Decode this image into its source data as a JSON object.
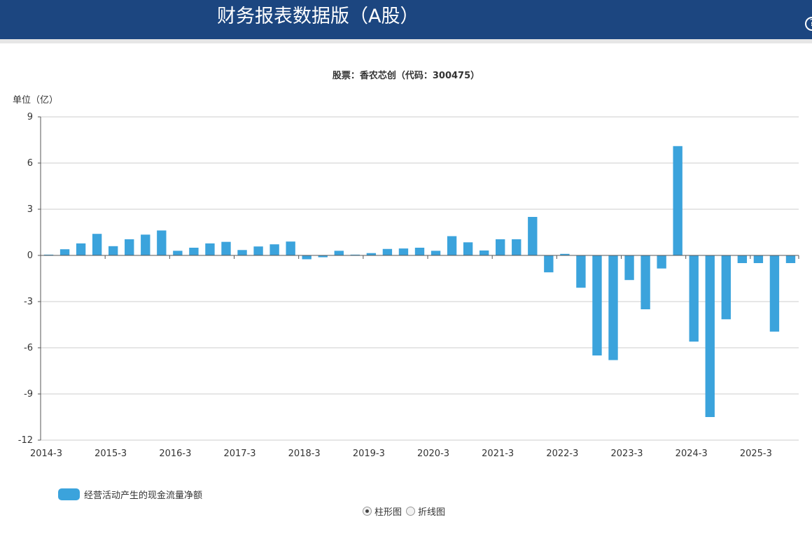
{
  "header": {
    "title": "财务报表数据版（A股）"
  },
  "chart_title": "股票：香农芯创（代码：300475）",
  "unit_label": "单位（亿）",
  "legend": {
    "label": "经营活动产生的现金流量净额",
    "color": "#3ba3dc"
  },
  "chart_type_switch": {
    "bar_label": "柱形图",
    "line_label": "折线图",
    "selected": "bar"
  },
  "chart_data": {
    "type": "bar",
    "ylim": [
      -12,
      9
    ],
    "yticks": [
      9,
      6,
      3,
      0,
      -3,
      -6,
      -9,
      -12
    ],
    "xtick_labels": [
      "2014-3",
      "2015-3",
      "2016-3",
      "2017-3",
      "2018-3",
      "2019-3",
      "2020-3",
      "2021-3",
      "2022-3",
      "2023-3",
      "2024-3",
      "2025-3"
    ],
    "grid": true,
    "series": [
      {
        "name": "经营活动产生的现金流量净额",
        "color": "#3ba3dc",
        "values": [
          0.05,
          0.4,
          0.78,
          1.4,
          0.6,
          1.05,
          1.35,
          1.62,
          0.3,
          0.5,
          0.78,
          0.88,
          0.35,
          0.58,
          0.72,
          0.9,
          -0.25,
          -0.12,
          0.3,
          0.05,
          0.15,
          0.42,
          0.45,
          0.5,
          0.3,
          1.25,
          0.85,
          0.32,
          1.05,
          1.05,
          2.5,
          -1.1,
          0.1,
          -2.1,
          -6.5,
          -6.8,
          -1.6,
          -3.5,
          -0.85,
          7.1,
          -5.6,
          -10.5,
          -4.15,
          -0.5,
          -0.5,
          -4.95,
          -0.5
        ]
      }
    ]
  }
}
